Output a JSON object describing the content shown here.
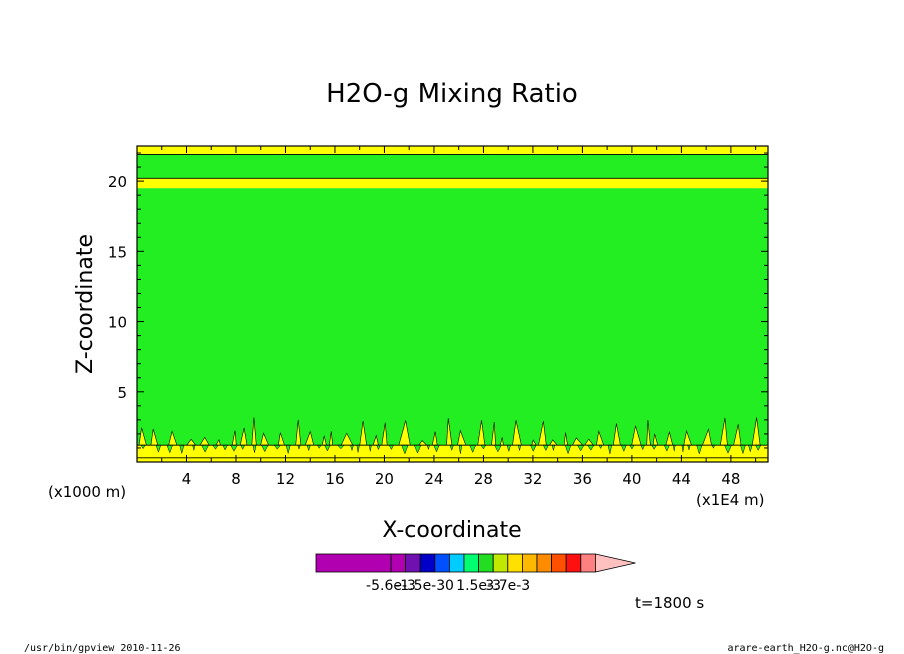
{
  "chart_data": {
    "type": "heatmap",
    "title": "H2O-g Mixing Ratio",
    "xlabel": "X-coordinate",
    "ylabel": "Z-coordinate",
    "x_unit_left": "(x1000 m)",
    "x_unit_right": "(x1E4 m)",
    "xlim": [
      0,
      51
    ],
    "ylim": [
      0,
      22.5
    ],
    "x_ticks": [
      4,
      8,
      12,
      16,
      20,
      24,
      28,
      32,
      36,
      40,
      44,
      48
    ],
    "y_ticks": [
      5,
      10,
      15,
      20
    ],
    "time_label": "t=1800 s",
    "colorbar": {
      "colors": [
        "#b000b0",
        "#b000b0",
        "#7010b0",
        "#0000c8",
        "#0050ff",
        "#00ccff",
        "#00ff70",
        "#22dd22",
        "#c0e800",
        "#ffe000",
        "#ffb800",
        "#ff8c00",
        "#ff5000",
        "#ff1010",
        "#ff8080",
        "#ffc0c0"
      ],
      "labels": [
        "-5.6e-3",
        "-1.5e-3",
        "0",
        "1.5e-3",
        "3.7e-3"
      ],
      "label_after_segment": [
        1,
        3,
        5,
        7,
        9
      ]
    },
    "bands": [
      {
        "z_from": 0.0,
        "z_to": 0.3,
        "color": "#ffff00"
      },
      {
        "z_from": 0.3,
        "z_to": 1.2,
        "color": "#ffff00"
      },
      {
        "z_from": 1.2,
        "z_to": 19.5,
        "color": "#22ee22"
      },
      {
        "z_from": 19.5,
        "z_to": 20.2,
        "color": "#ffff00"
      },
      {
        "z_from": 20.2,
        "z_to": 21.9,
        "color": "#22ee22"
      },
      {
        "z_from": 21.9,
        "z_to": 22.5,
        "color": "#ffff00"
      }
    ],
    "contour_levels": [
      0.3,
      1.2,
      20.2,
      21.9
    ]
  },
  "colors": {
    "green": "#22ee22",
    "yellow": "#ffff00",
    "axis": "#000000"
  },
  "footer": {
    "left": "/usr/bin/gpview  2010-11-26",
    "right": "arare-earth_H2O-g.nc@H2O-g"
  }
}
